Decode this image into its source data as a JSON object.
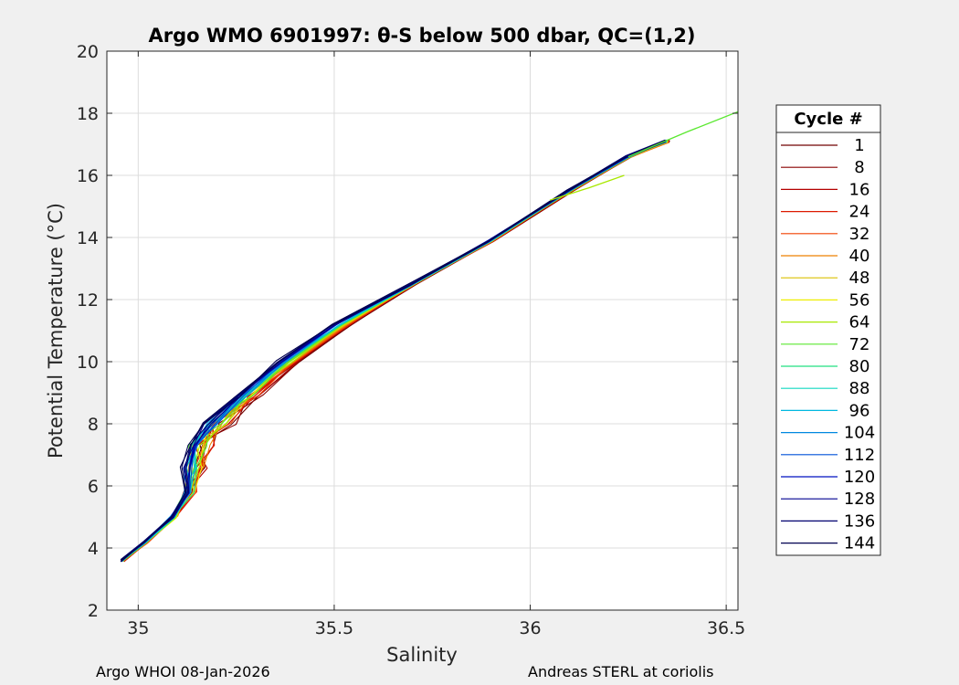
{
  "chart_data": {
    "type": "line",
    "title": "Argo WMO 6901997: θ-S below 500 dbar,  QC=(1,2)",
    "xlabel": "Salinity",
    "ylabel": "Potential Temperature (°C)",
    "xlim": [
      34.92,
      36.53
    ],
    "ylim": [
      2,
      20
    ],
    "xticks": [
      35,
      35.5,
      36,
      36.5
    ],
    "yticks": [
      2,
      4,
      6,
      8,
      10,
      12,
      14,
      16,
      18,
      20
    ],
    "xtick_labels": [
      "35",
      "35.5",
      "36",
      "36.5"
    ],
    "ytick_labels": [
      "2",
      "4",
      "6",
      "8",
      "10",
      "12",
      "14",
      "16",
      "18",
      "20"
    ],
    "grid": true,
    "legend_position": "right",
    "legend_title": "Cycle #",
    "legend": [
      {
        "label": "1",
        "color": "#700000"
      },
      {
        "label": "8",
        "color": "#8a0000"
      },
      {
        "label": "16",
        "color": "#b40000"
      },
      {
        "label": "24",
        "color": "#dd1a00"
      },
      {
        "label": "32",
        "color": "#f04000"
      },
      {
        "label": "40",
        "color": "#ee8000"
      },
      {
        "label": "48",
        "color": "#dcc000"
      },
      {
        "label": "56",
        "color": "#eeee00"
      },
      {
        "label": "64",
        "color": "#a8e800"
      },
      {
        "label": "72",
        "color": "#5ae830"
      },
      {
        "label": "80",
        "color": "#20e080"
      },
      {
        "label": "88",
        "color": "#10d8c0"
      },
      {
        "label": "96",
        "color": "#00b8e0"
      },
      {
        "label": "104",
        "color": "#0088e0"
      },
      {
        "label": "112",
        "color": "#0050d8"
      },
      {
        "label": "120",
        "color": "#0010c0"
      },
      {
        "label": "128",
        "color": "#000090"
      },
      {
        "label": "136",
        "color": "#000070"
      },
      {
        "label": "144",
        "color": "#000050"
      }
    ],
    "main_curve": [
      [
        34.96,
        3.6
      ],
      [
        35.02,
        4.2
      ],
      [
        35.09,
        5.0
      ],
      [
        35.13,
        5.8
      ],
      [
        35.14,
        6.6
      ],
      [
        35.15,
        7.3
      ],
      [
        35.2,
        8.0
      ],
      [
        35.28,
        8.9
      ],
      [
        35.38,
        10.0
      ],
      [
        35.52,
        11.2
      ],
      [
        35.7,
        12.5
      ],
      [
        35.9,
        13.9
      ],
      [
        36.1,
        15.5
      ],
      [
        36.25,
        16.6
      ],
      [
        36.35,
        17.1
      ]
    ],
    "extensions": [
      {
        "cycle": "72",
        "points": [
          [
            36.25,
            16.6
          ],
          [
            36.4,
            17.4
          ],
          [
            36.53,
            18.05
          ]
        ]
      },
      {
        "cycle": "64",
        "points": [
          [
            36.05,
            15.2
          ],
          [
            36.15,
            15.6
          ],
          [
            36.24,
            16.0
          ]
        ]
      }
    ],
    "footer_left": "Argo WHOI 08-Jan-2026",
    "footer_right": "Andreas STERL at coriolis"
  }
}
